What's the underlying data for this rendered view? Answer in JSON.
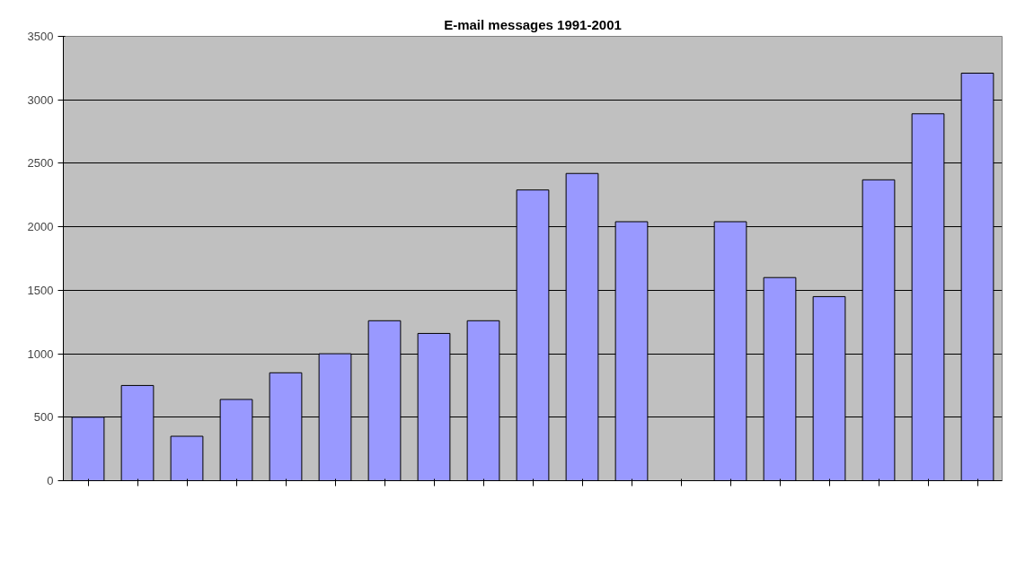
{
  "chart_data": {
    "type": "bar",
    "title": "E-mail messages 1991-2001",
    "categories": [
      null,
      null,
      null,
      null,
      null,
      null,
      null,
      null,
      null,
      null,
      null,
      null,
      null,
      null,
      null,
      null,
      null,
      null,
      null
    ],
    "values": [
      500,
      750,
      350,
      640,
      850,
      1000,
      1260,
      1160,
      1260,
      2290,
      2420,
      2040,
      null,
      2040,
      1600,
      1450,
      2370,
      2890,
      3210
    ],
    "color": "#9999ff",
    "ylim": [
      0,
      3500
    ],
    "yticks": [
      0,
      500,
      1000,
      1500,
      2000,
      2500,
      3000,
      3500
    ],
    "grid": "y",
    "tick_labels": "y"
  }
}
